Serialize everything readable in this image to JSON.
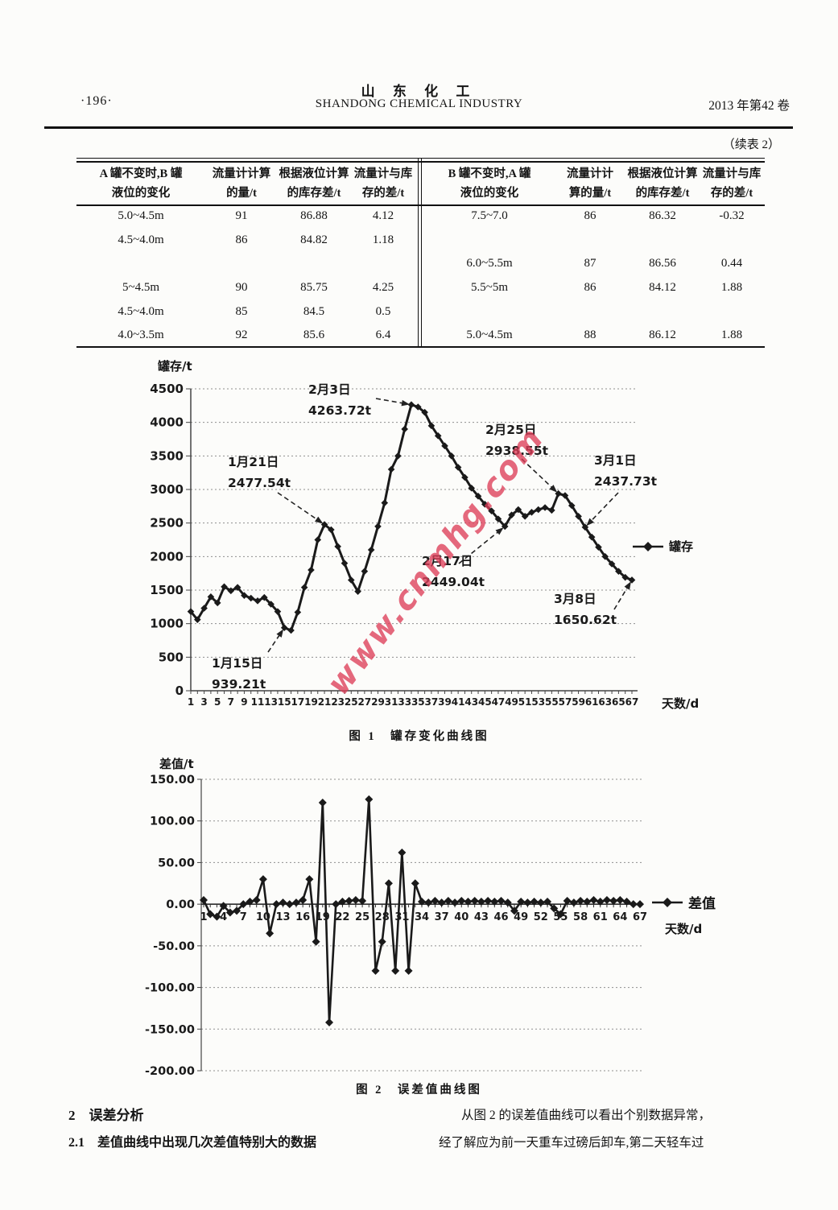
{
  "page": {
    "page_number": "·196·",
    "journal_cn": "山  东  化  工",
    "journal_en": "SHANDONG CHEMICAL INDUSTRY",
    "issue": "2013 年第42 卷",
    "continuation_note": "（续表 2）"
  },
  "colors": {
    "ink": "#1a1a1a",
    "watermark_red": "#dc3e58",
    "grid_gray": "#8f8f8f"
  },
  "watermark": "www.cnmhg.com",
  "table": {
    "left": {
      "headers": [
        {
          "l1": "A 罐不变时,B 罐",
          "l2": "液位的变化"
        },
        {
          "l1": "流量计计算",
          "l2": "的量/t"
        },
        {
          "l1": "根据液位计算",
          "l2": "的库存差/t"
        },
        {
          "l1": "流量计与库",
          "l2": "存的差/t"
        }
      ],
      "rows": [
        [
          "5.0~4.5m",
          "91",
          "86.88",
          "4.12"
        ],
        [
          "4.5~4.0m",
          "86",
          "84.82",
          "1.18"
        ],
        [
          "",
          "",
          "",
          ""
        ],
        [
          "5~4.5m",
          "90",
          "85.75",
          "4.25"
        ],
        [
          "4.5~4.0m",
          "85",
          "84.5",
          "0.5"
        ],
        [
          "4.0~3.5m",
          "92",
          "85.6",
          "6.4"
        ]
      ]
    },
    "right": {
      "headers": [
        {
          "l1": "B 罐不变时,A 罐",
          "l2": "液位的变化"
        },
        {
          "l1": "流量计计",
          "l2": "算的量/t"
        },
        {
          "l1": "根据液位计算",
          "l2": "的库存差/t"
        },
        {
          "l1": "流量计与库",
          "l2": "存的差/t"
        }
      ],
      "rows": [
        [
          "7.5~7.0",
          "86",
          "86.32",
          "-0.32"
        ],
        [
          "",
          "",
          "",
          ""
        ],
        [
          "6.0~5.5m",
          "87",
          "86.56",
          "0.44"
        ],
        [
          "5.5~5m",
          "86",
          "84.12",
          "1.88"
        ],
        [
          "",
          "",
          "",
          ""
        ],
        [
          "5.0~4.5m",
          "88",
          "86.12",
          "1.88"
        ]
      ]
    }
  },
  "chart_data": [
    {
      "type": "line",
      "title": "罐存变化曲线图",
      "caption": "图 1　罐存变化曲线图",
      "ylabel": "罐存/t",
      "xlabel": "天数/d",
      "legend": "罐存",
      "ylim": [
        0,
        4500
      ],
      "ytick_step": 500,
      "x_range": [
        1,
        67
      ],
      "x_label_step": 2,
      "grid": "dashed-horizontal",
      "legend_position": "right",
      "values": [
        1180,
        1060,
        1230,
        1400,
        1310,
        1550,
        1490,
        1540,
        1420,
        1380,
        1340,
        1390,
        1290,
        1180,
        939.21,
        900,
        1170,
        1540,
        1800,
        2250,
        2477.54,
        2400,
        2150,
        1900,
        1650,
        1480,
        1780,
        2100,
        2450,
        2800,
        3300,
        3500,
        3900,
        4263.72,
        4230,
        4150,
        3950,
        3800,
        3650,
        3500,
        3330,
        3180,
        3020,
        2900,
        2780,
        2680,
        2560,
        2449.04,
        2620,
        2700,
        2600,
        2660,
        2700,
        2730,
        2690,
        2938.55,
        2910,
        2760,
        2600,
        2437.73,
        2290,
        2140,
        2000,
        1890,
        1780,
        1690,
        1650.62
      ],
      "annotations": [
        {
          "date": "2月3日",
          "value": "4263.72t",
          "day": 34,
          "val": 4263.72
        },
        {
          "date": "1月21日",
          "value": "2477.54t",
          "day": 21,
          "val": 2477.54
        },
        {
          "date": "2月25日",
          "value": "2938.55t",
          "day": 56,
          "val": 2938.55
        },
        {
          "date": "3月1日",
          "value": "2437.73t",
          "day": 60,
          "val": 2437.73
        },
        {
          "date": "2月17日",
          "value": "2449.04t",
          "day": 48,
          "val": 2449.04
        },
        {
          "date": "1月15日",
          "value": "939.21t",
          "day": 15,
          "val": 939.21
        },
        {
          "date": "3月8日",
          "value": "1650.62t",
          "day": 67,
          "val": 1650.62
        }
      ]
    },
    {
      "type": "line",
      "title": "误差值曲线图",
      "caption": "图 2　误差值曲线图",
      "ylabel": "差值/t",
      "xlabel": "天数/d",
      "legend": "差值",
      "ylim": [
        -200,
        150
      ],
      "yticks": [
        "150.00",
        "100.00",
        "50.00",
        "0.00",
        "-50.00",
        "-100.00",
        "-150.00",
        "-200.00"
      ],
      "x_range": [
        1,
        67
      ],
      "x_label_step": 3,
      "grid": "dashed-horizontal",
      "legend_position": "right",
      "values": [
        5,
        -12,
        -15,
        -2,
        -10,
        -8,
        0,
        3,
        5,
        30,
        -35,
        0,
        2,
        0,
        2,
        5,
        30,
        -45,
        122,
        -142,
        0,
        3,
        4,
        5,
        4,
        126,
        -80,
        -45,
        25,
        -80,
        62,
        -80,
        25,
        3,
        2,
        4,
        2,
        4,
        2,
        4,
        3,
        4,
        3,
        4,
        3,
        4,
        2,
        -8,
        3,
        2,
        3,
        2,
        3,
        -5,
        -12,
        4,
        2,
        4,
        3,
        5,
        3,
        5,
        4,
        5,
        3,
        0,
        0
      ]
    }
  ],
  "body": {
    "section_heading": "2　误差分析",
    "subsection_heading": "2.1　差值曲线中出现几次差值特别大的数据",
    "right_col_line1": "从图 2 的误差值曲线可以看出个别数据异常，",
    "right_col_line2": "经了解应为前一天重车过磅后卸车,第二天轻车过"
  }
}
